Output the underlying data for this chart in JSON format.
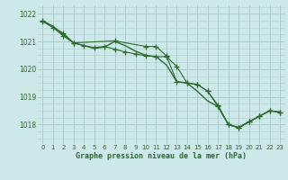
{
  "title": "Graphe pression niveau de la mer (hPa)",
  "bg_color": "#cce8e8",
  "grid_color": "#aacccc",
  "line_color": "#2d6b2d",
  "xlim": [
    -0.5,
    23.5
  ],
  "ylim": [
    1017.3,
    1022.3
  ],
  "yticks": [
    1018,
    1019,
    1020,
    1021,
    1022
  ],
  "xticks": [
    0,
    1,
    2,
    3,
    4,
    5,
    6,
    7,
    8,
    9,
    10,
    11,
    12,
    13,
    14,
    15,
    16,
    17,
    18,
    19,
    20,
    21,
    22,
    23
  ],
  "series1_x": [
    0,
    1,
    2,
    3,
    4,
    5,
    6,
    7,
    8,
    9,
    10,
    11,
    12,
    13,
    14,
    15,
    16,
    17,
    18,
    19,
    20,
    21,
    22,
    23
  ],
  "series1_y": [
    1021.75,
    1021.55,
    1021.25,
    1020.95,
    1020.85,
    1020.75,
    1020.8,
    1021.0,
    1020.85,
    1020.65,
    1020.5,
    1020.45,
    1020.15,
    1019.55,
    1019.5,
    1019.2,
    1018.85,
    1018.65,
    1018.0,
    1017.9,
    1018.1,
    1018.3,
    1018.5,
    1018.45
  ],
  "series2_x": [
    0,
    1,
    2,
    3,
    4,
    5,
    6,
    7,
    8,
    9,
    10,
    11,
    12,
    13,
    14,
    15,
    16,
    17,
    18,
    19,
    20,
    21,
    22,
    23
  ],
  "series2_y": [
    1021.75,
    1021.5,
    1021.2,
    1020.95,
    1020.85,
    1020.78,
    1020.82,
    1020.72,
    1020.62,
    1020.55,
    1020.48,
    1020.45,
    1020.45,
    1020.1,
    1019.5,
    1019.45,
    1019.2,
    1018.7,
    1018.0,
    1017.9,
    1018.1,
    1018.3,
    1018.5,
    1018.45
  ],
  "series3_x": [
    0,
    2,
    3,
    7,
    10,
    11,
    12,
    13,
    14,
    15,
    16,
    17,
    18,
    19,
    20,
    21,
    22,
    23
  ],
  "series3_y": [
    1021.72,
    1021.3,
    1020.95,
    1021.02,
    1020.82,
    1020.82,
    1020.48,
    1019.55,
    1019.5,
    1019.45,
    1019.2,
    1018.65,
    1018.0,
    1017.88,
    1018.1,
    1018.3,
    1018.5,
    1018.45
  ]
}
